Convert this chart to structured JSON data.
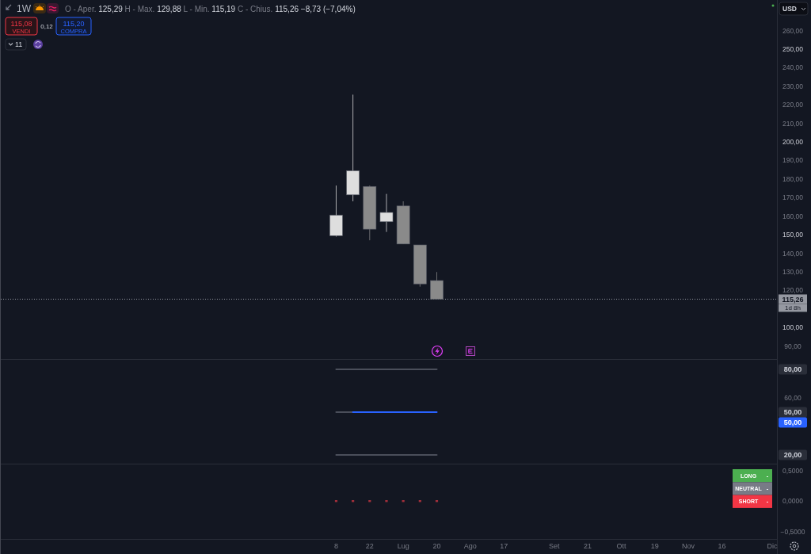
{
  "chart_data": [
    {
      "type": "candlestick",
      "title": "1W",
      "subtitle": "O - Aper. 125,29 H - Max. 129,88 L - Min. 115,19 C - Chius. 115,26 −8,73 (−7,04%)",
      "ylabel": "USD",
      "x": [
        "--06-08",
        "--06-15",
        "--06-22",
        "--06-29",
        "--07-06",
        "--07-13",
        "--07-20"
      ],
      "ohlc": [
        [
          149.5,
          176.5,
          149,
          160.5
        ],
        [
          171.5,
          225.5,
          168,
          184.5
        ],
        [
          176,
          176.5,
          147,
          153
        ],
        [
          157,
          172,
          151.5,
          162
        ],
        [
          165.5,
          168,
          145,
          145
        ],
        [
          144.5,
          144.5,
          122,
          123.5
        ],
        [
          125.29,
          129.88,
          115.19,
          115.26
        ]
      ],
      "colors": [
        "#dedede",
        "#dedede",
        "#8a8a8a",
        "#dedede",
        "#8a8a8a",
        "#8a8a8a",
        "#8a8a8a"
      ],
      "xlim": [
        "--01-19",
        "--12-09"
      ],
      "ylim": [
        83,
        276.5
      ],
      "yticks": [
        {
          "value": 90,
          "label": "90,00"
        },
        {
          "value": 100,
          "label": "100,00"
        },
        {
          "value": 120,
          "label": "120,00"
        },
        {
          "value": 130,
          "label": "130,00"
        },
        {
          "value": 140,
          "label": "140,00"
        },
        {
          "value": 150,
          "label": "150,00"
        },
        {
          "value": 160,
          "label": "160,00"
        },
        {
          "value": 170,
          "label": "170,00"
        },
        {
          "value": 180,
          "label": "180,00"
        },
        {
          "value": 190,
          "label": "190,00"
        },
        {
          "value": 200,
          "label": "200,00"
        },
        {
          "value": 210,
          "label": "210,00"
        },
        {
          "value": 220,
          "label": "220,00"
        },
        {
          "value": 230,
          "label": "230,00"
        },
        {
          "value": 240,
          "label": "240,00"
        },
        {
          "value": 250,
          "label": "250,00"
        },
        {
          "value": 260,
          "label": "260,00"
        }
      ],
      "ref_lines": [
        {
          "axis": "y",
          "value": 115.26,
          "label": "115,26",
          "line_style": "dotted",
          "color": "#9598a1"
        }
      ],
      "annotations": [
        "115,08",
        "VENDI",
        "0,12",
        "115,20",
        "COMPRA",
        "11",
        "1d 8h"
      ],
      "tick_labels": "y"
    },
    {
      "type": "line",
      "x": [
        "--06-08",
        "--06-15",
        "--06-22",
        "--06-29",
        "--07-06",
        "--07-13",
        "--07-20"
      ],
      "series": [
        {
          "color": "#4a4e5a",
          "values": [
            80,
            80,
            80,
            80,
            80,
            80,
            80
          ]
        },
        {
          "color": "#4a4e5a",
          "values": [
            50,
            50,
            null,
            null,
            null,
            null,
            null
          ]
        },
        {
          "color": "#4a4e5a",
          "values": [
            20,
            20,
            20,
            20,
            20,
            20,
            20
          ]
        },
        {
          "color": "#2962ff",
          "values": [
            null,
            50,
            50,
            50,
            50,
            50,
            50
          ]
        }
      ],
      "xlim": [
        "--01-19",
        "--12-09"
      ],
      "ylim": [
        13.9,
        86.7
      ],
      "yticks": [
        {
          "value": 80,
          "label": "80,00"
        },
        {
          "value": 60,
          "label": "60,00"
        },
        {
          "value": 50,
          "label": "50,00"
        },
        {
          "value": 20,
          "label": "20,00"
        }
      ],
      "annotations": [
        "50,00"
      ],
      "tick_labels": "y"
    },
    {
      "type": "scatter",
      "x": [
        "--06-08",
        "--06-15",
        "--06-22",
        "--06-29",
        "--07-06",
        "--07-13",
        "--07-20"
      ],
      "values": [
        0,
        0,
        0,
        0,
        0,
        0,
        0
      ],
      "color": "#a3303b",
      "marker": "square",
      "xlim": [
        "--01-19",
        "--12-09"
      ],
      "ylim": [
        -0.62,
        0.6
      ],
      "xticks": [
        {
          "value": "--06-08",
          "label": "8"
        },
        {
          "value": "--06-22",
          "label": "22"
        },
        {
          "value": "--07-06",
          "label": "Lug"
        },
        {
          "value": "--07-20",
          "label": "20"
        },
        {
          "value": "--08-03",
          "label": "Ago"
        },
        {
          "value": "--08-17",
          "label": "17"
        },
        {
          "value": "--09-07",
          "label": "Set"
        },
        {
          "value": "--09-21",
          "label": "21"
        },
        {
          "value": "--10-05",
          "label": "Ott"
        },
        {
          "value": "--10-19",
          "label": "19"
        },
        {
          "value": "--11-02",
          "label": "Nov"
        },
        {
          "value": "--11-16",
          "label": "16"
        },
        {
          "value": "--12-07",
          "label": "Dic"
        }
      ],
      "yticks": [
        {
          "value": 0.5,
          "label": "0,5000"
        },
        {
          "value": 0,
          "label": "0,0000"
        },
        {
          "value": -0.5,
          "label": "−0,5000"
        }
      ],
      "annotations": [
        "LONG",
        "-",
        "NEUTRAL",
        "-",
        "SHORT",
        "-"
      ]
    }
  ]
}
